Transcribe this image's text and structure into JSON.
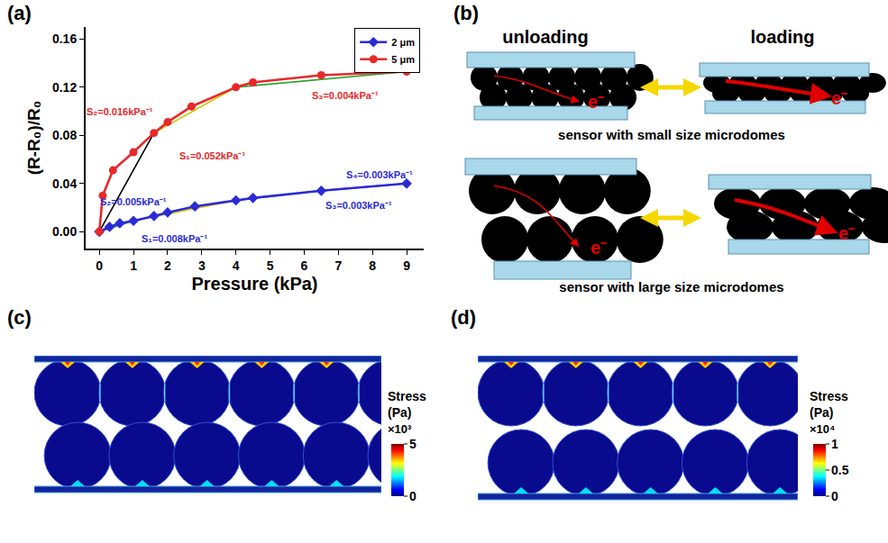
{
  "chart_data": {
    "type": "line",
    "panel_label": "(a)",
    "x_label": "Pressure (kPa)",
    "y_label": "(R-R₀)/R₀",
    "xlim": [
      -0.4,
      9.5
    ],
    "xticks": [
      0,
      1,
      2,
      3,
      4,
      5,
      6,
      7,
      8,
      9
    ],
    "ylim": [
      -0.014,
      0.17
    ],
    "yticks": [
      {
        "value": 0,
        "label": "0.00"
      },
      {
        "value": 0.04,
        "label": "0.04"
      },
      {
        "value": 0.08,
        "label": "0.08"
      },
      {
        "value": 0.12,
        "label": "0.12"
      },
      {
        "value": 0.16,
        "label": "0.16"
      }
    ],
    "grid": false,
    "legend": "top right",
    "series": [
      {
        "name": "2 μm",
        "color": "#2b2bd6",
        "marker": "diamond",
        "x": [
          0,
          0.3,
          0.6,
          1.0,
          1.6,
          2.0,
          2.8,
          4.0,
          4.5,
          6.5,
          9.0
        ],
        "values": [
          0,
          0.004,
          0.007,
          0.009,
          0.013,
          0.016,
          0.021,
          0.026,
          0.028,
          0.034,
          0.04
        ]
      },
      {
        "name": "5 μm",
        "color": "#e8282b",
        "marker": "circle",
        "x": [
          0,
          0.1,
          0.4,
          1.0,
          1.6,
          2.0,
          2.7,
          4.0,
          4.5,
          6.5,
          9.0
        ],
        "values": [
          0,
          0.03,
          0.051,
          0.066,
          0.082,
          0.091,
          0.104,
          0.12,
          0.124,
          0.13,
          0.133
        ]
      }
    ],
    "fit_lines": [
      {
        "color": "#000000",
        "x": [
          0,
          1.6
        ],
        "values": [
          0,
          0.082
        ]
      },
      {
        "color": "#c8c800",
        "x": [
          1.6,
          4.0
        ],
        "values": [
          0.082,
          0.12
        ]
      },
      {
        "color": "#2ca02c",
        "x": [
          4.0,
          9.0
        ],
        "values": [
          0.12,
          0.133
        ]
      },
      {
        "color": "#2ca02c",
        "x": [
          0,
          1.0
        ],
        "values": [
          0,
          0.009
        ]
      },
      {
        "color": "#e6c800",
        "x": [
          1.0,
          4.0
        ],
        "values": [
          0.009,
          0.026
        ]
      },
      {
        "color": "#00bcd4",
        "x": [
          4.0,
          6.5
        ],
        "values": [
          0.026,
          0.034
        ]
      },
      {
        "color": "#7a3fbf",
        "x": [
          6.5,
          9.0
        ],
        "values": [
          0.034,
          0.04
        ]
      }
    ],
    "annotations": [
      {
        "text": "S₂=0.016kPa⁻¹",
        "x": 0.6,
        "y": 0.1,
        "color": "#e8282b"
      },
      {
        "text": "S₁=0.052kPa⁻¹",
        "x": 3.3,
        "y": 0.063,
        "color": "#e8282b"
      },
      {
        "text": "S₃=0.004kPa⁻¹",
        "x": 7.2,
        "y": 0.113,
        "color": "#e8282b"
      },
      {
        "text": "S₂=0.005kPa⁻¹",
        "x": 1.0,
        "y": 0.025,
        "color": "#2b2bd6"
      },
      {
        "text": "S₁=0.008kPa⁻¹",
        "x": 2.2,
        "y": -0.006,
        "color": "#2b2bd6"
      },
      {
        "text": "S₃=0.003kPa⁻¹",
        "x": 7.6,
        "y": 0.022,
        "color": "#2b2bd6"
      },
      {
        "text": "S₄=0.003kPa⁻¹",
        "x": 8.2,
        "y": 0.047,
        "color": "#2b2bd6"
      }
    ]
  },
  "diagram": {
    "panel_label": "(b)",
    "states": [
      "unloading",
      "loading"
    ],
    "rows": [
      {
        "caption": "sensor with small size microdomes"
      },
      {
        "caption": "sensor with large size microdomes"
      }
    ],
    "carrier": "e⁻"
  },
  "stress_maps": [
    {
      "panel_label": "(c)",
      "colorbar": {
        "title": [
          "Stress",
          "(Pa)"
        ],
        "multiplier": "×10³",
        "range": [
          0,
          5
        ],
        "ticks": [
          0,
          5
        ]
      }
    },
    {
      "panel_label": "(d)",
      "colorbar": {
        "title": [
          "Stress",
          "(Pa)"
        ],
        "multiplier": "×10⁴",
        "range": [
          0,
          1
        ],
        "ticks": [
          0,
          0.5,
          1
        ]
      }
    }
  ]
}
